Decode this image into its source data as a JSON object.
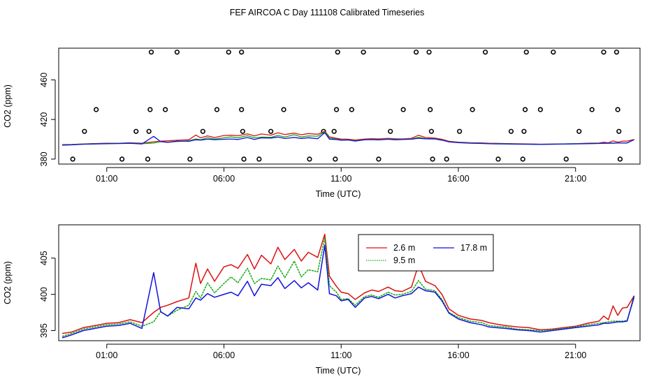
{
  "title": "FEF AIRCOA C  Day 111108  Calibrated Timeseries",
  "colors": {
    "s26": "#dd1111",
    "s95": "#11aa11",
    "s178": "#1111dd",
    "axis": "#000000"
  },
  "chart_data": [
    {
      "type": "scatter",
      "title": "",
      "xlabel": "Time (UTC)",
      "ylabel": "CO2 (ppm)",
      "xlim": [
        -1.05,
        23.75
      ],
      "ylim": [
        375,
        492
      ],
      "xticks": [
        1,
        6,
        11,
        16,
        21
      ],
      "xtick_labels": [
        "01:00",
        "06:00",
        "11:00",
        "16:00",
        "21:00"
      ],
      "yticks": [
        380,
        420,
        460
      ],
      "ytick_labels": [
        "380",
        "420",
        "460"
      ],
      "outliers": [
        {
          "x": -0.45,
          "y": 380
        },
        {
          "x": 0.05,
          "y": 408
        },
        {
          "x": 0.55,
          "y": 430
        },
        {
          "x": 1.65,
          "y": 380
        },
        {
          "x": 2.25,
          "y": 408
        },
        {
          "x": 2.75,
          "y": 380
        },
        {
          "x": 2.8,
          "y": 408
        },
        {
          "x": 2.85,
          "y": 430
        },
        {
          "x": 2.9,
          "y": 488
        },
        {
          "x": 3.5,
          "y": 430
        },
        {
          "x": 4.0,
          "y": 488
        },
        {
          "x": 4.55,
          "y": 380
        },
        {
          "x": 5.1,
          "y": 408
        },
        {
          "x": 5.7,
          "y": 430
        },
        {
          "x": 6.2,
          "y": 488
        },
        {
          "x": 6.75,
          "y": 488
        },
        {
          "x": 6.75,
          "y": 430
        },
        {
          "x": 6.8,
          "y": 408
        },
        {
          "x": 6.85,
          "y": 380
        },
        {
          "x": 7.5,
          "y": 380
        },
        {
          "x": 8.0,
          "y": 408
        },
        {
          "x": 8.55,
          "y": 430
        },
        {
          "x": 9.65,
          "y": 380
        },
        {
          "x": 10.25,
          "y": 408
        },
        {
          "x": 10.7,
          "y": 408
        },
        {
          "x": 10.75,
          "y": 380
        },
        {
          "x": 10.8,
          "y": 430
        },
        {
          "x": 10.85,
          "y": 488
        },
        {
          "x": 11.45,
          "y": 430
        },
        {
          "x": 11.95,
          "y": 488
        },
        {
          "x": 12.6,
          "y": 380
        },
        {
          "x": 13.1,
          "y": 408
        },
        {
          "x": 13.65,
          "y": 430
        },
        {
          "x": 14.2,
          "y": 488
        },
        {
          "x": 14.75,
          "y": 488
        },
        {
          "x": 14.8,
          "y": 430
        },
        {
          "x": 14.85,
          "y": 408
        },
        {
          "x": 14.9,
          "y": 380
        },
        {
          "x": 15.5,
          "y": 380
        },
        {
          "x": 16.05,
          "y": 408
        },
        {
          "x": 16.6,
          "y": 430
        },
        {
          "x": 17.15,
          "y": 488
        },
        {
          "x": 17.7,
          "y": 380
        },
        {
          "x": 18.25,
          "y": 408
        },
        {
          "x": 18.75,
          "y": 380
        },
        {
          "x": 18.8,
          "y": 408
        },
        {
          "x": 18.85,
          "y": 430
        },
        {
          "x": 18.9,
          "y": 488
        },
        {
          "x": 19.5,
          "y": 430
        },
        {
          "x": 20.05,
          "y": 488
        },
        {
          "x": 20.6,
          "y": 380
        },
        {
          "x": 21.15,
          "y": 408
        },
        {
          "x": 21.7,
          "y": 430
        },
        {
          "x": 22.2,
          "y": 488
        },
        {
          "x": 22.75,
          "y": 488
        },
        {
          "x": 22.8,
          "y": 430
        },
        {
          "x": 22.85,
          "y": 408
        },
        {
          "x": 22.9,
          "y": 380
        }
      ],
      "series_ref": "shared_series"
    },
    {
      "type": "line",
      "title": "",
      "xlabel": "Time (UTC)",
      "ylabel": "CO2 (ppm)",
      "xlim": [
        -1.05,
        23.75
      ],
      "ylim": [
        393.6,
        409.6
      ],
      "xticks": [
        1,
        6,
        11,
        16,
        21
      ],
      "xtick_labels": [
        "01:00",
        "06:00",
        "11:00",
        "16:00",
        "21:00"
      ],
      "yticks": [
        395,
        400,
        405
      ],
      "ytick_labels": [
        "395",
        "400",
        "405"
      ],
      "legend": {
        "position": "top-center",
        "entries": [
          {
            "label": "2.6 m",
            "color": "#dd1111"
          },
          {
            "label": "9.5 m",
            "color": "#11aa11"
          },
          {
            "label": "17.8 m",
            "color": "#1111dd"
          }
        ]
      },
      "series_ref": "shared_series"
    }
  ],
  "shared_series": [
    {
      "name": "2.6 m",
      "color": "#dd1111",
      "x": [
        -0.9,
        -0.5,
        0,
        0.5,
        1,
        1.5,
        2,
        2.5,
        3,
        3.3,
        3.6,
        4,
        4.5,
        4.8,
        5,
        5.3,
        5.6,
        6,
        6.3,
        6.6,
        7,
        7.3,
        7.6,
        8,
        8.3,
        8.6,
        9,
        9.3,
        9.6,
        10,
        10.3,
        10.5,
        10.8,
        11,
        11.3,
        11.6,
        12,
        12.3,
        12.6,
        13,
        13.3,
        13.6,
        14,
        14.3,
        14.6,
        15,
        15.3,
        15.6,
        16,
        16.5,
        17,
        17.3,
        17.6,
        18,
        18.5,
        19,
        19.5,
        20,
        20.5,
        21,
        21.5,
        22,
        22.2,
        22.4,
        22.6,
        22.8,
        23,
        23.2,
        23.5
      ],
      "y": [
        394.6,
        394.8,
        395.4,
        395.7,
        396,
        396.1,
        396.5,
        396.1,
        397.5,
        398.2,
        398.5,
        399,
        399.5,
        404.3,
        401.5,
        403.5,
        401.8,
        403.8,
        404.1,
        403.6,
        405.5,
        403.5,
        405.4,
        404.2,
        406.5,
        404.8,
        406.2,
        404.6,
        405.8,
        405.1,
        408.3,
        402.5,
        401.1,
        400.3,
        400.1,
        399.3,
        400.2,
        400.6,
        400.4,
        401,
        400.5,
        400.4,
        401,
        404.1,
        401.8,
        401.2,
        400,
        398,
        397.1,
        396.6,
        396.4,
        396.1,
        395.9,
        395.7,
        395.5,
        395.4,
        395.1,
        395.2,
        395.4,
        395.6,
        396,
        396.3,
        397,
        396.5,
        398.4,
        397.1,
        398.1,
        398.2,
        399.8
      ]
    },
    {
      "name": "9.5 m",
      "color": "#11aa11",
      "x": [
        -0.9,
        -0.5,
        0,
        0.5,
        1,
        1.5,
        2,
        2.5,
        3,
        3.3,
        3.6,
        4,
        4.5,
        4.8,
        5,
        5.3,
        5.6,
        6,
        6.3,
        6.6,
        7,
        7.3,
        7.6,
        8,
        8.3,
        8.6,
        9,
        9.3,
        9.6,
        10,
        10.3,
        10.5,
        10.8,
        11,
        11.3,
        11.6,
        12,
        12.3,
        12.6,
        13,
        13.3,
        13.6,
        14,
        14.3,
        14.6,
        15,
        15.3,
        15.6,
        16,
        16.5,
        17,
        17.3,
        17.6,
        18,
        18.5,
        19,
        19.5,
        20,
        20.5,
        21,
        21.5,
        22,
        22.2,
        22.4,
        22.6,
        22.8,
        23,
        23.2,
        23.5
      ],
      "y": [
        394.2,
        394.6,
        395.2,
        395.5,
        395.8,
        395.9,
        396.2,
        395.6,
        396.2,
        397.6,
        397,
        397.8,
        398.5,
        400.4,
        399.5,
        401.6,
        400.2,
        401.5,
        402.4,
        401.6,
        403.6,
        401.5,
        402.2,
        402,
        403.9,
        402.3,
        404.6,
        402.4,
        403.4,
        403.1,
        407.8,
        401.2,
        400.3,
        399.3,
        399.4,
        398.5,
        399.7,
        399.9,
        399.6,
        400.3,
        399.9,
        400,
        400.4,
        401.9,
        400.7,
        400.5,
        399.3,
        397.5,
        396.8,
        396.3,
        396.1,
        395.7,
        395.6,
        395.5,
        395.2,
        395.1,
        395,
        395.1,
        395.3,
        395.5,
        395.8,
        396,
        396.1,
        396.2,
        396.3,
        396.3,
        396.3,
        396.4,
        399.5
      ]
    },
    {
      "name": "17.8 m",
      "color": "#1111dd",
      "x": [
        -0.9,
        -0.5,
        0,
        0.5,
        1,
        1.5,
        2,
        2.5,
        3,
        3.3,
        3.6,
        4,
        4.5,
        4.8,
        5,
        5.3,
        5.6,
        6,
        6.3,
        6.6,
        7,
        7.3,
        7.6,
        8,
        8.3,
        8.6,
        9,
        9.3,
        9.6,
        10,
        10.3,
        10.5,
        10.8,
        11,
        11.3,
        11.6,
        12,
        12.3,
        12.6,
        13,
        13.3,
        13.6,
        14,
        14.3,
        14.6,
        15,
        15.3,
        15.6,
        16,
        16.5,
        17,
        17.3,
        17.6,
        18,
        18.5,
        19,
        19.5,
        20,
        20.5,
        21,
        21.5,
        22,
        22.2,
        22.4,
        22.6,
        22.8,
        23,
        23.2,
        23.5
      ],
      "y": [
        394,
        394.4,
        395,
        395.3,
        395.6,
        395.7,
        396,
        395.3,
        403,
        397.6,
        397,
        398.2,
        398,
        399.5,
        399.2,
        400.1,
        399.6,
        400,
        400.3,
        399.8,
        401.8,
        399.8,
        401.4,
        401.2,
        402.3,
        400.8,
        401.9,
        400.9,
        401.6,
        400.6,
        406.8,
        400.1,
        399.8,
        399.1,
        399.3,
        398.2,
        399.5,
        399.7,
        399.4,
        400,
        399.5,
        399.8,
        400.1,
        401,
        400.5,
        400.3,
        399.1,
        397.4,
        396.6,
        396.1,
        395.8,
        395.5,
        395.4,
        395.3,
        395.1,
        395,
        394.8,
        395,
        395.2,
        395.4,
        395.6,
        395.8,
        396,
        396,
        396.1,
        396.2,
        396.2,
        396.3,
        399.8
      ]
    }
  ]
}
